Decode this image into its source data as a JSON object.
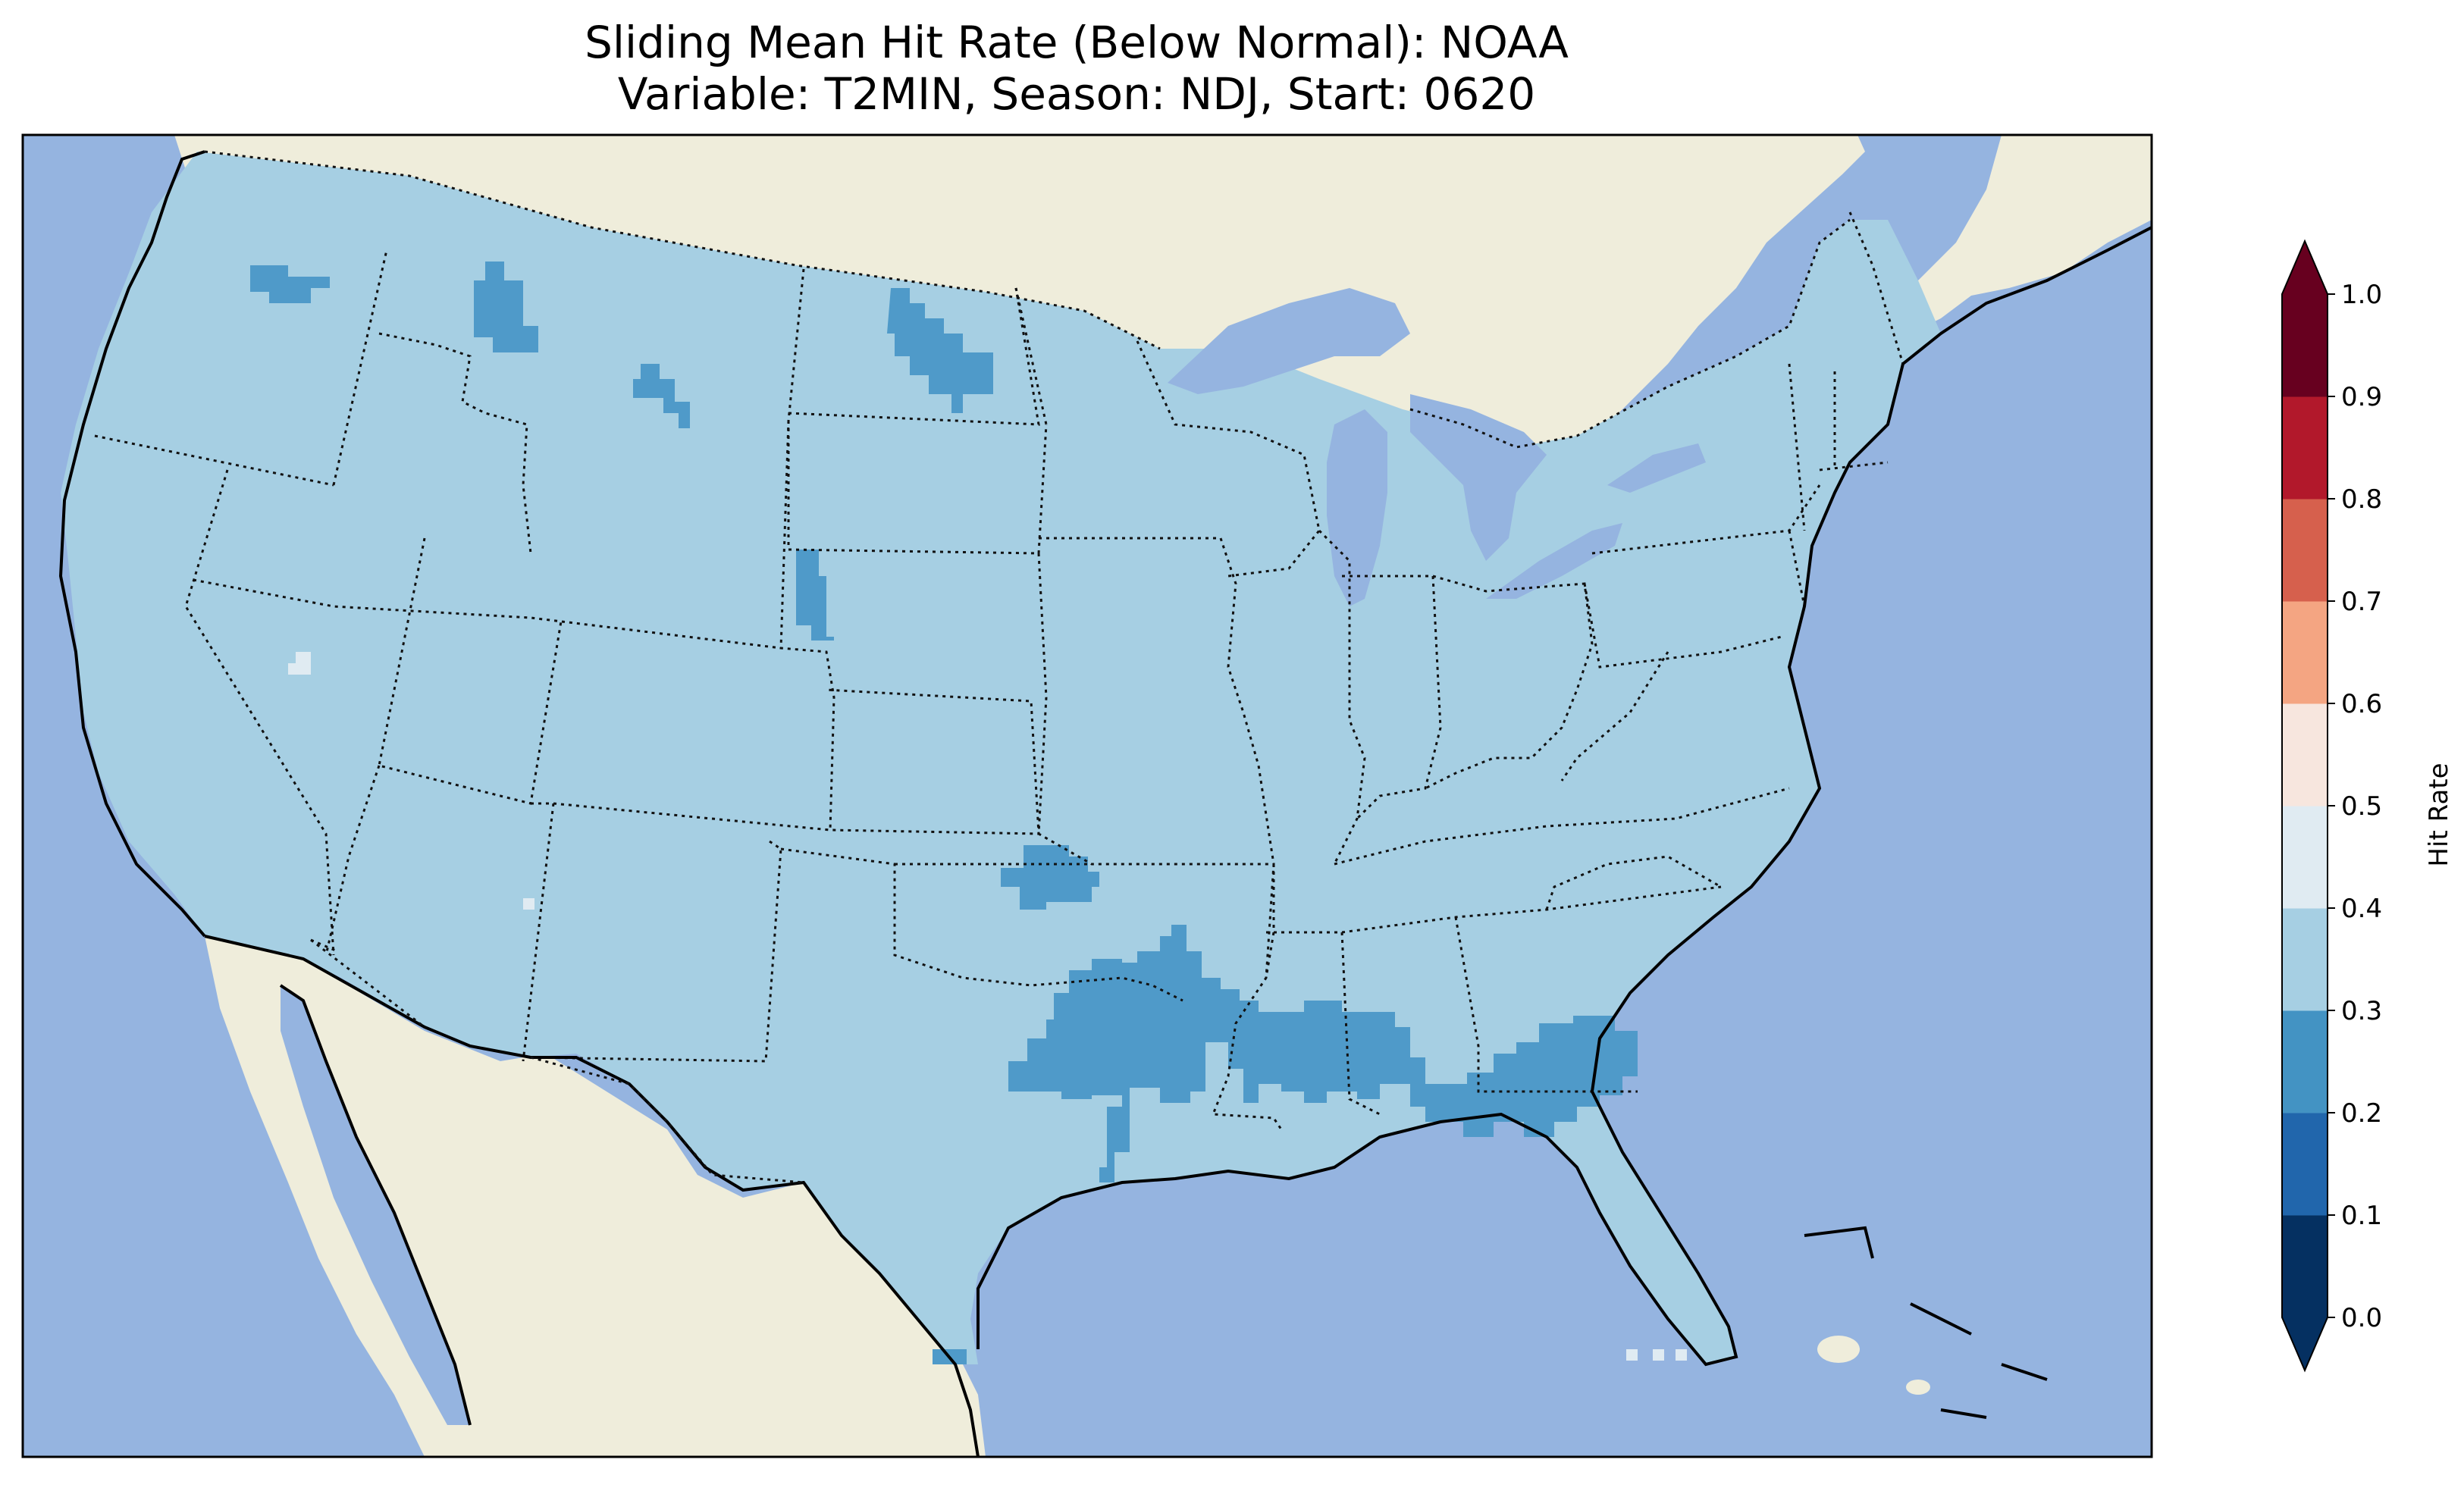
{
  "title": "Sliding Mean Hit Rate (Below Normal): NOAA",
  "subtitle": "Variable: T2MIN, Season: NDJ, Start: 0620",
  "colorbar": {
    "label": "Hit Rate",
    "ticks": [
      "0.0",
      "0.1",
      "0.2",
      "0.3",
      "0.4",
      "0.5",
      "0.6",
      "0.7",
      "0.8",
      "0.9",
      "1.0"
    ],
    "colors": [
      "#053061",
      "#2166ac",
      "#4393c3",
      "#a6cfe3",
      "#e0ebf2",
      "#f7e6de",
      "#f4a582",
      "#d6604d",
      "#b2182b",
      "#67001f"
    ],
    "under_color": "#053061",
    "over_color": "#67001f"
  },
  "map": {
    "ocean_color": "#95b4e0",
    "land_color": "#efeddb",
    "dominant_hit_rate_bin": "0.3-0.4",
    "low_hit_rate_bin": "0.2-0.3",
    "high_hit_rate_bin": "0.4-0.5",
    "low_regions": [
      "Washington (north)",
      "Idaho / Montana border",
      "Montana (central)",
      "North Dakota (north-central)",
      "Wyoming / Nebraska panhandle",
      "Oklahoma (central)",
      "Texas (northeast)",
      "Arkansas / Louisiana (north)",
      "Mississippi / Alabama (south)",
      "Georgia / South Carolina",
      "Florida panhandle"
    ],
    "high_regions": [
      "Nevada (west-central)",
      "Arizona (east)"
    ]
  }
}
